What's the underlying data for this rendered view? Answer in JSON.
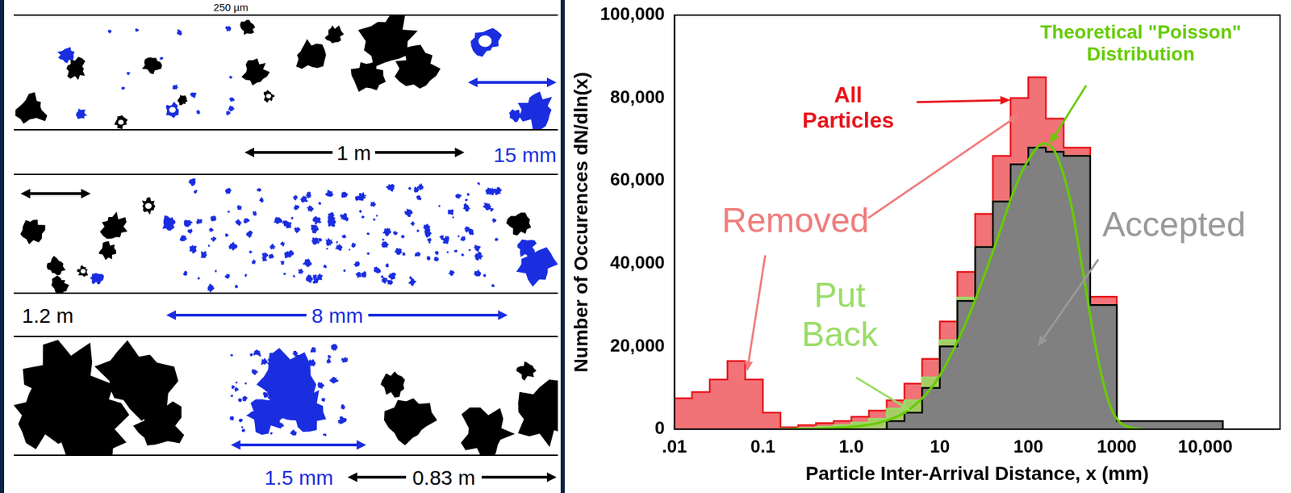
{
  "left_panel": {
    "scale_bars": [
      "250 µm",
      "1 m",
      "15 mm",
      "1.2 m",
      "8 mm",
      "1.5 mm",
      "0.83 m"
    ]
  },
  "chart_data": {
    "type": "histogram",
    "x_label": "Particle Inter-Arrival Distance, x (mm)",
    "y_label": "Number of Occurences dN/dln(x)",
    "log": "x",
    "grid": false,
    "xlim": [
      0.01,
      70000
    ],
    "xticks": [
      {
        "value": 0.01,
        "label": ".01"
      },
      0.1,
      {
        "value": 1,
        "label": "1.0"
      },
      10,
      100,
      1000,
      {
        "value": 10000,
        "label": "10,000"
      }
    ],
    "ylim": [
      0,
      100000
    ],
    "yticks": [
      0,
      {
        "value": 20000,
        "label": "20,000"
      },
      {
        "value": 40000,
        "label": "40,000"
      },
      {
        "value": 60000,
        "label": "60,000"
      },
      {
        "value": 80000,
        "label": "80,000"
      },
      {
        "value": 100000,
        "label": "100,000"
      }
    ],
    "bins": [
      0.01,
      0.0158,
      0.0251,
      0.0398,
      0.0631,
      0.1,
      0.158,
      0.251,
      0.398,
      0.631,
      1,
      1.58,
      2.51,
      3.98,
      6.31,
      10,
      15.8,
      25.1,
      39.8,
      63.1,
      100,
      158,
      251,
      501,
      1000,
      15800
    ],
    "series": [
      {
        "name": "All Particles",
        "type": "step",
        "color": "#e8141c",
        "values": [
          7500,
          9000,
          12000,
          16500,
          12000,
          4000,
          500,
          1000,
          1500,
          2000,
          3000,
          4500,
          7000,
          11000,
          17000,
          26000,
          38000,
          52000,
          66000,
          80000,
          85000,
          75000,
          68000,
          32000,
          2000
        ]
      },
      {
        "name": "Put Back",
        "type": "step",
        "color": "#99dd66",
        "values": [
          0,
          0,
          0,
          0,
          0,
          0,
          100,
          300,
          600,
          1000,
          1600,
          2500,
          5000,
          7000,
          12500,
          21500,
          31800,
          44000,
          55000,
          64000,
          68000,
          67000,
          66000,
          30000,
          2000
        ]
      },
      {
        "name": "Accepted",
        "type": "step",
        "color": "#808080",
        "values": [
          0,
          0,
          0,
          0,
          0,
          0,
          0,
          0,
          0,
          0,
          0,
          0,
          2000,
          4000,
          10000,
          20000,
          31000,
          44000,
          55000,
          64000,
          68000,
          67000,
          66000,
          30000,
          2000
        ]
      },
      {
        "name": "Theoretical \"Poisson\" Distribution",
        "type": "line",
        "color": "#66cc00",
        "x": [
          0.2,
          0.5,
          1,
          2,
          4,
          7,
          10,
          20,
          40,
          70,
          100,
          150,
          200,
          300,
          400,
          600,
          800,
          1000,
          1500,
          2000
        ],
        "values": [
          0,
          200,
          600,
          1500,
          4000,
          8500,
          13000,
          26000,
          43000,
          58000,
          65000,
          69000,
          67000,
          55000,
          40000,
          18000,
          7000,
          2500,
          300,
          0
        ]
      }
    ],
    "annotations": [
      "Removed"
    ]
  }
}
